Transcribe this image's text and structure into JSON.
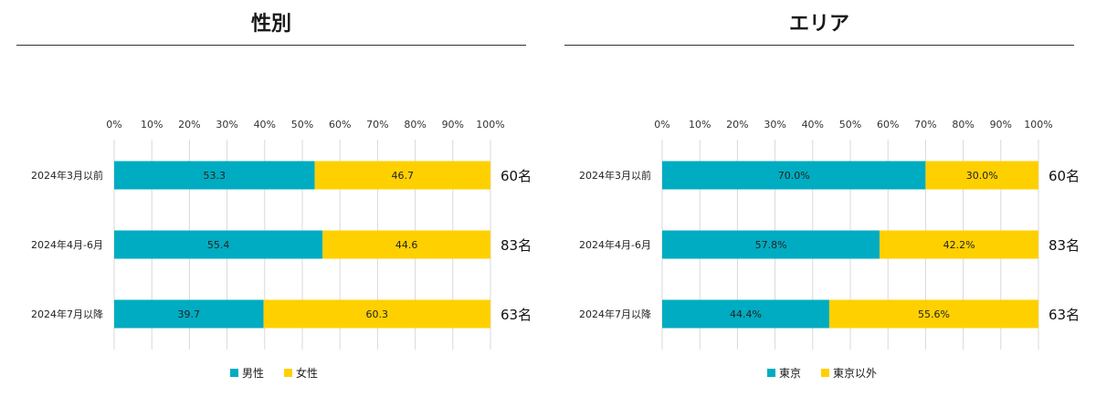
{
  "colors": {
    "teal": "#00ACC1",
    "yellow": "#FFD000",
    "grid": "#d9d9d9"
  },
  "panels": [
    {
      "title": "性別",
      "legend": [
        "男性",
        "女性"
      ],
      "counts": [
        "60名",
        "83名",
        "63名"
      ]
    },
    {
      "title": "エリア",
      "legend": [
        "東京",
        "東京以外"
      ],
      "counts": [
        "60名",
        "83名",
        "63名"
      ]
    }
  ],
  "chart_data": [
    {
      "type": "bar",
      "stacked": true,
      "orientation": "horizontal",
      "title": "性別",
      "categories": [
        "2024年3月以前",
        "2024年4月-6月",
        "2024年7月以降"
      ],
      "series": [
        {
          "name": "男性",
          "values": [
            53.3,
            55.4,
            39.7
          ],
          "labels": [
            "53.3",
            "55.4",
            "39.7"
          ]
        },
        {
          "name": "女性",
          "values": [
            46.7,
            44.6,
            60.3
          ],
          "labels": [
            "46.7",
            "44.6",
            "60.3"
          ]
        }
      ],
      "xticks": [
        "0%",
        "10%",
        "20%",
        "30%",
        "40%",
        "50%",
        "60%",
        "70%",
        "80%",
        "90%",
        "100%"
      ],
      "xlim": [
        0,
        100
      ],
      "grid": true,
      "legend_position": "bottom"
    },
    {
      "type": "bar",
      "stacked": true,
      "orientation": "horizontal",
      "title": "エリア",
      "categories": [
        "2024年3月以前",
        "2024年4月-6月",
        "2024年7月以降"
      ],
      "series": [
        {
          "name": "東京",
          "values": [
            70.0,
            57.8,
            44.4
          ],
          "labels": [
            "70.0%",
            "57.8%",
            "44.4%"
          ]
        },
        {
          "name": "東京以外",
          "values": [
            30.0,
            42.2,
            55.6
          ],
          "labels": [
            "30.0%",
            "42.2%",
            "55.6%"
          ]
        }
      ],
      "xticks": [
        "0%",
        "10%",
        "20%",
        "30%",
        "40%",
        "50%",
        "60%",
        "70%",
        "80%",
        "90%",
        "100%"
      ],
      "xlim": [
        0,
        100
      ],
      "grid": true,
      "legend_position": "bottom"
    }
  ]
}
